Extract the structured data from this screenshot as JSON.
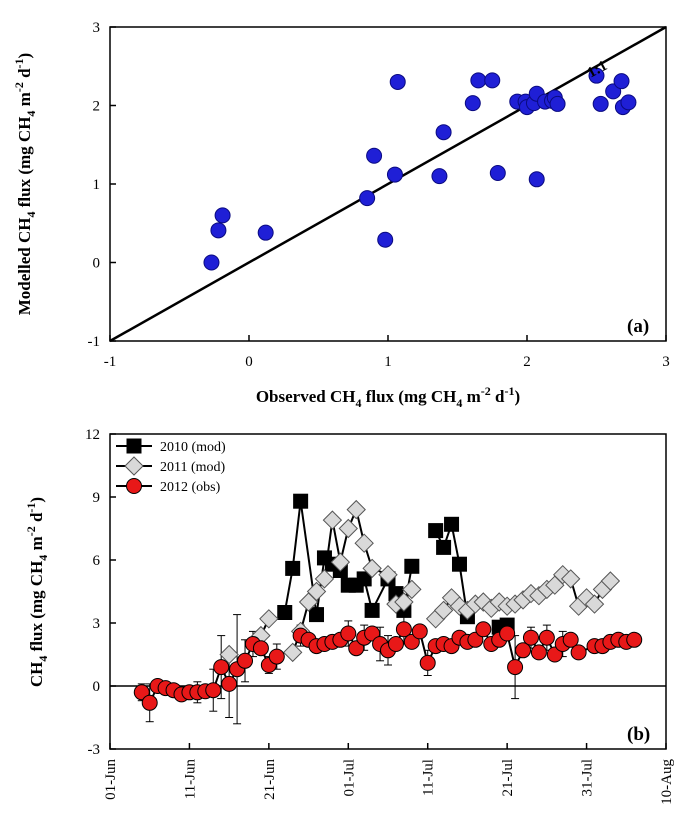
{
  "chart_data": [
    {
      "type": "scatter",
      "panel_label": "(a)",
      "xlabel": "Observed CH4 flux (mg CH4 m-2 d-1)",
      "ylabel": "Modelled CH4 flux (mg CH4 m-2 d-1)",
      "xlim": [
        -1,
        3
      ],
      "ylim": [
        -1,
        3
      ],
      "xticks": [
        -1,
        0,
        1,
        2,
        3
      ],
      "yticks": [
        -1,
        0,
        1,
        2,
        3
      ],
      "grid": false,
      "reference_line": {
        "label": "1:1",
        "from": [
          -1,
          -1
        ],
        "to": [
          3,
          3
        ]
      },
      "point_color": "#1f1fd6",
      "points": [
        [
          -0.27,
          0.0
        ],
        [
          -0.22,
          0.41
        ],
        [
          -0.19,
          0.6
        ],
        [
          0.12,
          0.38
        ],
        [
          0.85,
          0.82
        ],
        [
          0.9,
          1.36
        ],
        [
          0.98,
          0.29
        ],
        [
          1.05,
          1.12
        ],
        [
          1.07,
          2.3
        ],
        [
          1.37,
          1.1
        ],
        [
          1.4,
          1.66
        ],
        [
          1.61,
          2.03
        ],
        [
          1.65,
          2.32
        ],
        [
          1.75,
          2.32
        ],
        [
          1.79,
          1.14
        ],
        [
          1.93,
          2.05
        ],
        [
          1.99,
          2.05
        ],
        [
          2.0,
          1.98
        ],
        [
          2.05,
          2.03
        ],
        [
          2.07,
          2.15
        ],
        [
          2.07,
          1.06
        ],
        [
          2.13,
          2.05
        ],
        [
          2.18,
          2.06
        ],
        [
          2.2,
          2.1
        ],
        [
          2.22,
          2.02
        ],
        [
          2.5,
          2.38
        ],
        [
          2.53,
          2.02
        ],
        [
          2.62,
          2.18
        ],
        [
          2.68,
          2.31
        ],
        [
          2.69,
          1.98
        ],
        [
          2.73,
          2.04
        ]
      ]
    },
    {
      "type": "line",
      "panel_label": "(b)",
      "ylabel": "CH4 flux (mg CH4 m-2 d-1)",
      "ylim": [
        -3,
        12
      ],
      "yticks": [
        -3,
        0,
        3,
        6,
        9,
        12
      ],
      "xlim": [
        "2000-06-01",
        "2000-08-10"
      ],
      "xticks": [
        "01-Jun",
        "11-Jun",
        "21-Jun",
        "01-Jul",
        "11-Jul",
        "21-Jul",
        "31-Jul",
        "10-Aug"
      ],
      "grid": false,
      "zero_line": true,
      "series": [
        {
          "name": "2010 (mod)",
          "marker": "square",
          "color": "#000000",
          "points": [
            [
              "06-23",
              3.5
            ],
            [
              "06-24",
              5.6
            ],
            [
              "06-25",
              8.8
            ],
            [
              "06-27",
              3.4
            ],
            [
              "06-28",
              6.1
            ],
            [
              "06-29",
              5.8
            ],
            [
              "06-30",
              5.5
            ],
            [
              "07-01",
              4.8
            ],
            [
              "07-02",
              4.8
            ],
            [
              "07-03",
              5.1
            ],
            [
              "07-04",
              3.6
            ],
            [
              "07-06",
              5.1
            ],
            [
              "07-07",
              4.4
            ],
            [
              "07-08",
              3.6
            ],
            [
              "07-09",
              5.7
            ],
            [
              "07-12",
              7.4
            ],
            [
              "07-13",
              6.6
            ],
            [
              "07-14",
              7.7
            ],
            [
              "07-15",
              5.8
            ],
            [
              "07-16",
              3.3
            ],
            [
              "07-20",
              2.8
            ],
            [
              "07-21",
              2.9
            ]
          ]
        },
        {
          "name": "2011 (mod)",
          "marker": "diamond",
          "color": "#d9d9d9",
          "points": [
            [
              "06-16",
              1.5
            ],
            [
              "06-20",
              2.4
            ],
            [
              "06-21",
              3.2
            ],
            [
              "06-24",
              1.6
            ],
            [
              "06-25",
              2.6
            ],
            [
              "06-26",
              4.0
            ],
            [
              "06-27",
              4.5
            ],
            [
              "06-28",
              5.1
            ],
            [
              "06-29",
              7.9
            ],
            [
              "06-30",
              5.9
            ],
            [
              "07-01",
              7.5
            ],
            [
              "07-02",
              8.4
            ],
            [
              "07-03",
              6.8
            ],
            [
              "07-04",
              5.6
            ],
            [
              "07-06",
              5.3
            ],
            [
              "07-07",
              3.9
            ],
            [
              "07-08",
              4.0
            ],
            [
              "07-09",
              4.6
            ],
            [
              "07-12",
              3.2
            ],
            [
              "07-13",
              3.6
            ],
            [
              "07-14",
              4.2
            ],
            [
              "07-15",
              3.8
            ],
            [
              "07-16",
              3.6
            ],
            [
              "07-17",
              3.9
            ],
            [
              "07-18",
              4.0
            ],
            [
              "07-19",
              3.7
            ],
            [
              "07-20",
              4.0
            ],
            [
              "07-21",
              3.8
            ],
            [
              "07-22",
              3.9
            ],
            [
              "07-23",
              4.1
            ],
            [
              "07-24",
              4.4
            ],
            [
              "07-25",
              4.3
            ],
            [
              "07-26",
              4.6
            ],
            [
              "07-27",
              4.8
            ],
            [
              "07-28",
              5.3
            ],
            [
              "07-29",
              5.1
            ],
            [
              "07-30",
              3.8
            ],
            [
              "07-31",
              4.2
            ],
            [
              "08-01",
              3.9
            ],
            [
              "08-02",
              4.6
            ],
            [
              "08-03",
              5.0
            ]
          ]
        },
        {
          "name": "2012 (obs)",
          "marker": "circle",
          "color": "#e81818",
          "points": [
            [
              "06-05",
              -0.3
            ],
            [
              "06-06",
              -0.8
            ],
            [
              "06-07",
              0.0
            ],
            [
              "06-08",
              -0.1
            ],
            [
              "06-09",
              -0.2
            ],
            [
              "06-10",
              -0.4
            ],
            [
              "06-11",
              -0.3
            ],
            [
              "06-12",
              -0.3
            ],
            [
              "06-13",
              -0.25
            ],
            [
              "06-14",
              -0.2
            ],
            [
              "06-15",
              0.9
            ],
            [
              "06-16",
              0.1
            ],
            [
              "06-17",
              0.8
            ],
            [
              "06-18",
              1.2
            ],
            [
              "06-19",
              2.0
            ],
            [
              "06-20",
              1.8
            ],
            [
              "06-21",
              1.0
            ],
            [
              "06-22",
              1.4
            ],
            [
              "06-25",
              2.4
            ],
            [
              "06-26",
              2.2
            ],
            [
              "06-27",
              1.9
            ],
            [
              "06-28",
              2.0
            ],
            [
              "06-29",
              2.1
            ],
            [
              "06-30",
              2.2
            ],
            [
              "07-01",
              2.5
            ],
            [
              "07-02",
              1.8
            ],
            [
              "07-03",
              2.3
            ],
            [
              "07-04",
              2.5
            ],
            [
              "07-05",
              2.0
            ],
            [
              "07-06",
              1.7
            ],
            [
              "07-07",
              2.0
            ],
            [
              "07-08",
              2.7
            ],
            [
              "07-09",
              2.1
            ],
            [
              "07-10",
              2.6
            ],
            [
              "07-11",
              1.1
            ],
            [
              "07-12",
              1.9
            ],
            [
              "07-13",
              2.0
            ],
            [
              "07-14",
              1.9
            ],
            [
              "07-15",
              2.3
            ],
            [
              "07-16",
              2.1
            ],
            [
              "07-17",
              2.2
            ],
            [
              "07-18",
              2.7
            ],
            [
              "07-19",
              2.0
            ],
            [
              "07-20",
              2.2
            ],
            [
              "07-21",
              2.5
            ],
            [
              "07-22",
              0.9
            ],
            [
              "07-23",
              1.7
            ],
            [
              "07-24",
              2.3
            ],
            [
              "07-25",
              1.6
            ],
            [
              "07-26",
              2.3
            ],
            [
              "07-27",
              1.5
            ],
            [
              "07-28",
              2.0
            ],
            [
              "07-29",
              2.2
            ],
            [
              "07-30",
              1.6
            ],
            [
              "08-01",
              1.9
            ],
            [
              "08-02",
              1.9
            ],
            [
              "08-03",
              2.1
            ],
            [
              "08-04",
              2.2
            ],
            [
              "08-05",
              2.1
            ],
            [
              "08-06",
              2.2
            ]
          ],
          "error_bars": [
            [
              "06-05",
              0.4
            ],
            [
              "06-06",
              0.9
            ],
            [
              "06-07",
              0.2
            ],
            [
              "06-10",
              0.3
            ],
            [
              "06-12",
              0.5
            ],
            [
              "06-14",
              1.0
            ],
            [
              "06-15",
              1.5
            ],
            [
              "06-16",
              1.6
            ],
            [
              "06-17",
              2.6
            ],
            [
              "06-18",
              1.0
            ],
            [
              "06-19",
              0.6
            ],
            [
              "06-21",
              0.4
            ],
            [
              "06-22",
              0.6
            ],
            [
              "06-25",
              0.5
            ],
            [
              "07-01",
              0.6
            ],
            [
              "07-03",
              0.6
            ],
            [
              "07-05",
              0.8
            ],
            [
              "07-06",
              0.7
            ],
            [
              "07-08",
              0.7
            ],
            [
              "07-11",
              0.6
            ],
            [
              "07-22",
              1.5
            ],
            [
              "07-24",
              0.5
            ],
            [
              "07-26",
              0.6
            ],
            [
              "07-28",
              0.6
            ]
          ]
        }
      ]
    }
  ]
}
